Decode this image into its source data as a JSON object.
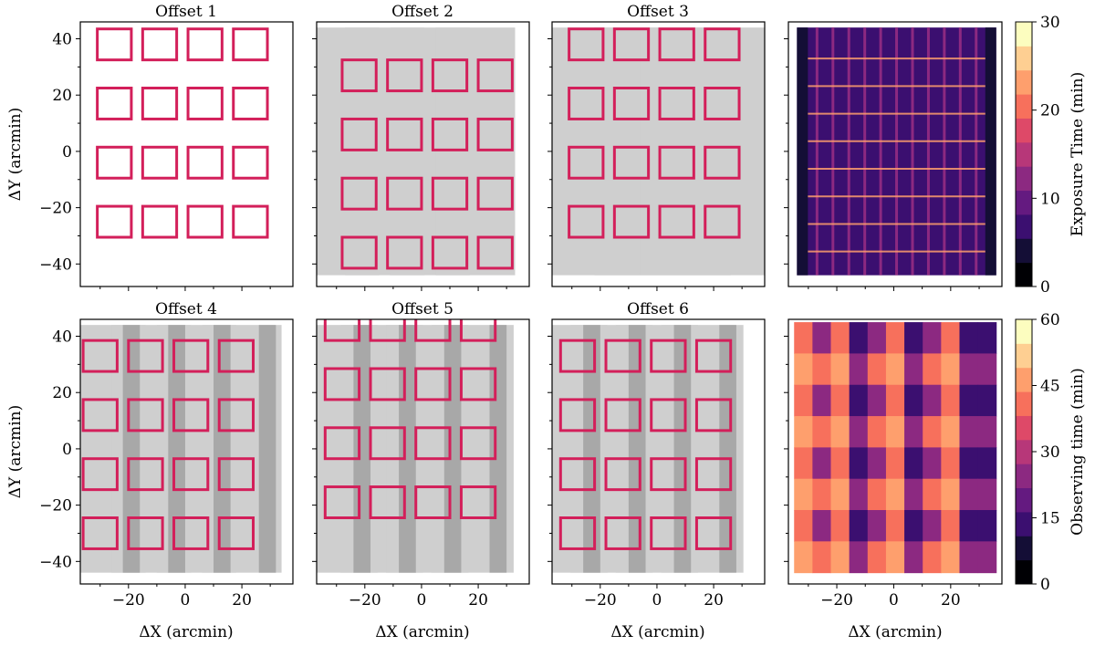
{
  "chart_data": {
    "type": "multi-panel",
    "xlabel": "ΔX (arcmin)",
    "ylabel": "ΔY (arcmin)",
    "xlim": [
      -37,
      38
    ],
    "ylim": [
      -48,
      46
    ],
    "x_ticks": [
      -20,
      0,
      20
    ],
    "x_tick_labels": [
      "−20",
      "0",
      "20"
    ],
    "y_ticks": [
      40,
      20,
      0,
      -20,
      -40
    ],
    "y_tick_labels": [
      "40",
      "20",
      "0",
      "−20",
      "−40"
    ],
    "detector_size": [
      12,
      11
    ],
    "detector_color": "#d31f5a",
    "panels": [
      {
        "title": "Offset 1",
        "dx": 0,
        "dy": 0,
        "stripes": []
      },
      {
        "title": "Offset 2",
        "dx": 3,
        "dy": -11,
        "stripes": [
          [
            -29,
            44
          ],
          [
            -13,
            44
          ],
          [
            3,
            44
          ],
          [
            19,
            44
          ]
        ]
      },
      {
        "title": "Offset 3",
        "dx": 0,
        "dy": 0,
        "stripes": [
          [
            -22,
            48
          ],
          [
            -6,
            48
          ],
          [
            10,
            48
          ],
          [
            26,
            48
          ]
        ]
      },
      {
        "title": "Offset 4",
        "dx": -5,
        "dy": -5,
        "stripes": [
          [
            -28,
            44
          ],
          [
            -12,
            44
          ],
          [
            4,
            44
          ],
          [
            20,
            44
          ]
        ]
      },
      {
        "title": "Offset 5",
        "dx": -3,
        "dy": 6,
        "stripes": [
          [
            -30,
            45
          ],
          [
            -14,
            45
          ],
          [
            2,
            45
          ],
          [
            18,
            45
          ]
        ]
      },
      {
        "title": "Offset 6",
        "dx": -3,
        "dy": -5,
        "stripes": [
          [
            -32,
            45
          ],
          [
            -16,
            45
          ],
          [
            0,
            45
          ],
          [
            16,
            45
          ]
        ]
      }
    ],
    "base_detector_centers": {
      "x": [
        -25,
        -9,
        7,
        23
      ],
      "y": [
        38,
        17,
        -4,
        -25
      ]
    },
    "colorbars": [
      {
        "label": "Exposure Time (min)",
        "ticks": [
          0,
          10,
          20,
          30
        ],
        "tick_labels": [
          "0",
          "10",
          "20",
          "30"
        ],
        "range": [
          0,
          30
        ],
        "colors": [
          "#000004",
          "#140e36",
          "#3b0f70",
          "#641a80",
          "#8c2981",
          "#b73779",
          "#de4968",
          "#f7705c",
          "#fe9f6d",
          "#fecf92",
          "#fcfdbf"
        ]
      },
      {
        "label": "Observing time (min)",
        "ticks": [
          0,
          15,
          30,
          45,
          60
        ],
        "tick_labels": [
          "0",
          "15",
          "30",
          "45",
          "60"
        ],
        "range": [
          0,
          60
        ],
        "colors": [
          "#000004",
          "#140e36",
          "#3b0f70",
          "#641a80",
          "#8c2981",
          "#b73779",
          "#de4968",
          "#f7705c",
          "#fe9f6d",
          "#fecf92",
          "#fcfdbf"
        ]
      }
    ],
    "exposure_map": {
      "base_color": "#3b0f70",
      "edge_color": "#140e36",
      "line_color": "#8c2981",
      "hotspot_color": "#fe9f6d"
    },
    "observing_map": {
      "low": "#3b0f70",
      "mid": "#8c2981",
      "high": "#f7705c",
      "peak": "#fe9f6d"
    }
  }
}
